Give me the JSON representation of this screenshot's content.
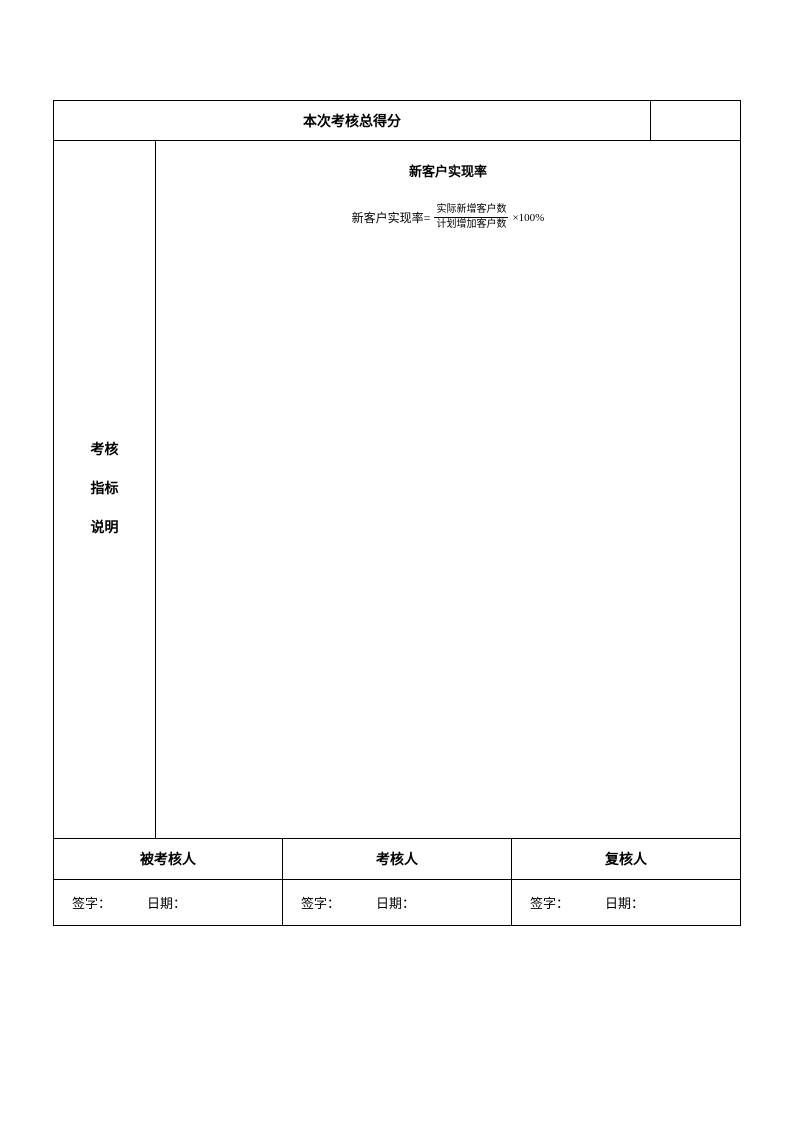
{
  "header": {
    "title": "本次考核总得分",
    "score": ""
  },
  "leftLabel": {
    "line1": "考核",
    "line2": "指标",
    "line3": "说明"
  },
  "formula": {
    "title": "新客户实现率",
    "prefix": "新客户实现率=",
    "numerator": "实际新增客户数",
    "denominator": "计划增加客户数",
    "suffix": "×100%"
  },
  "signers": {
    "col1_header": "被考核人",
    "col2_header": "考核人",
    "col3_header": "复核人",
    "sign_label": "签字：",
    "date_label": "日期："
  },
  "colors": {
    "border": "#000000",
    "background": "#ffffff",
    "text": "#000000"
  }
}
